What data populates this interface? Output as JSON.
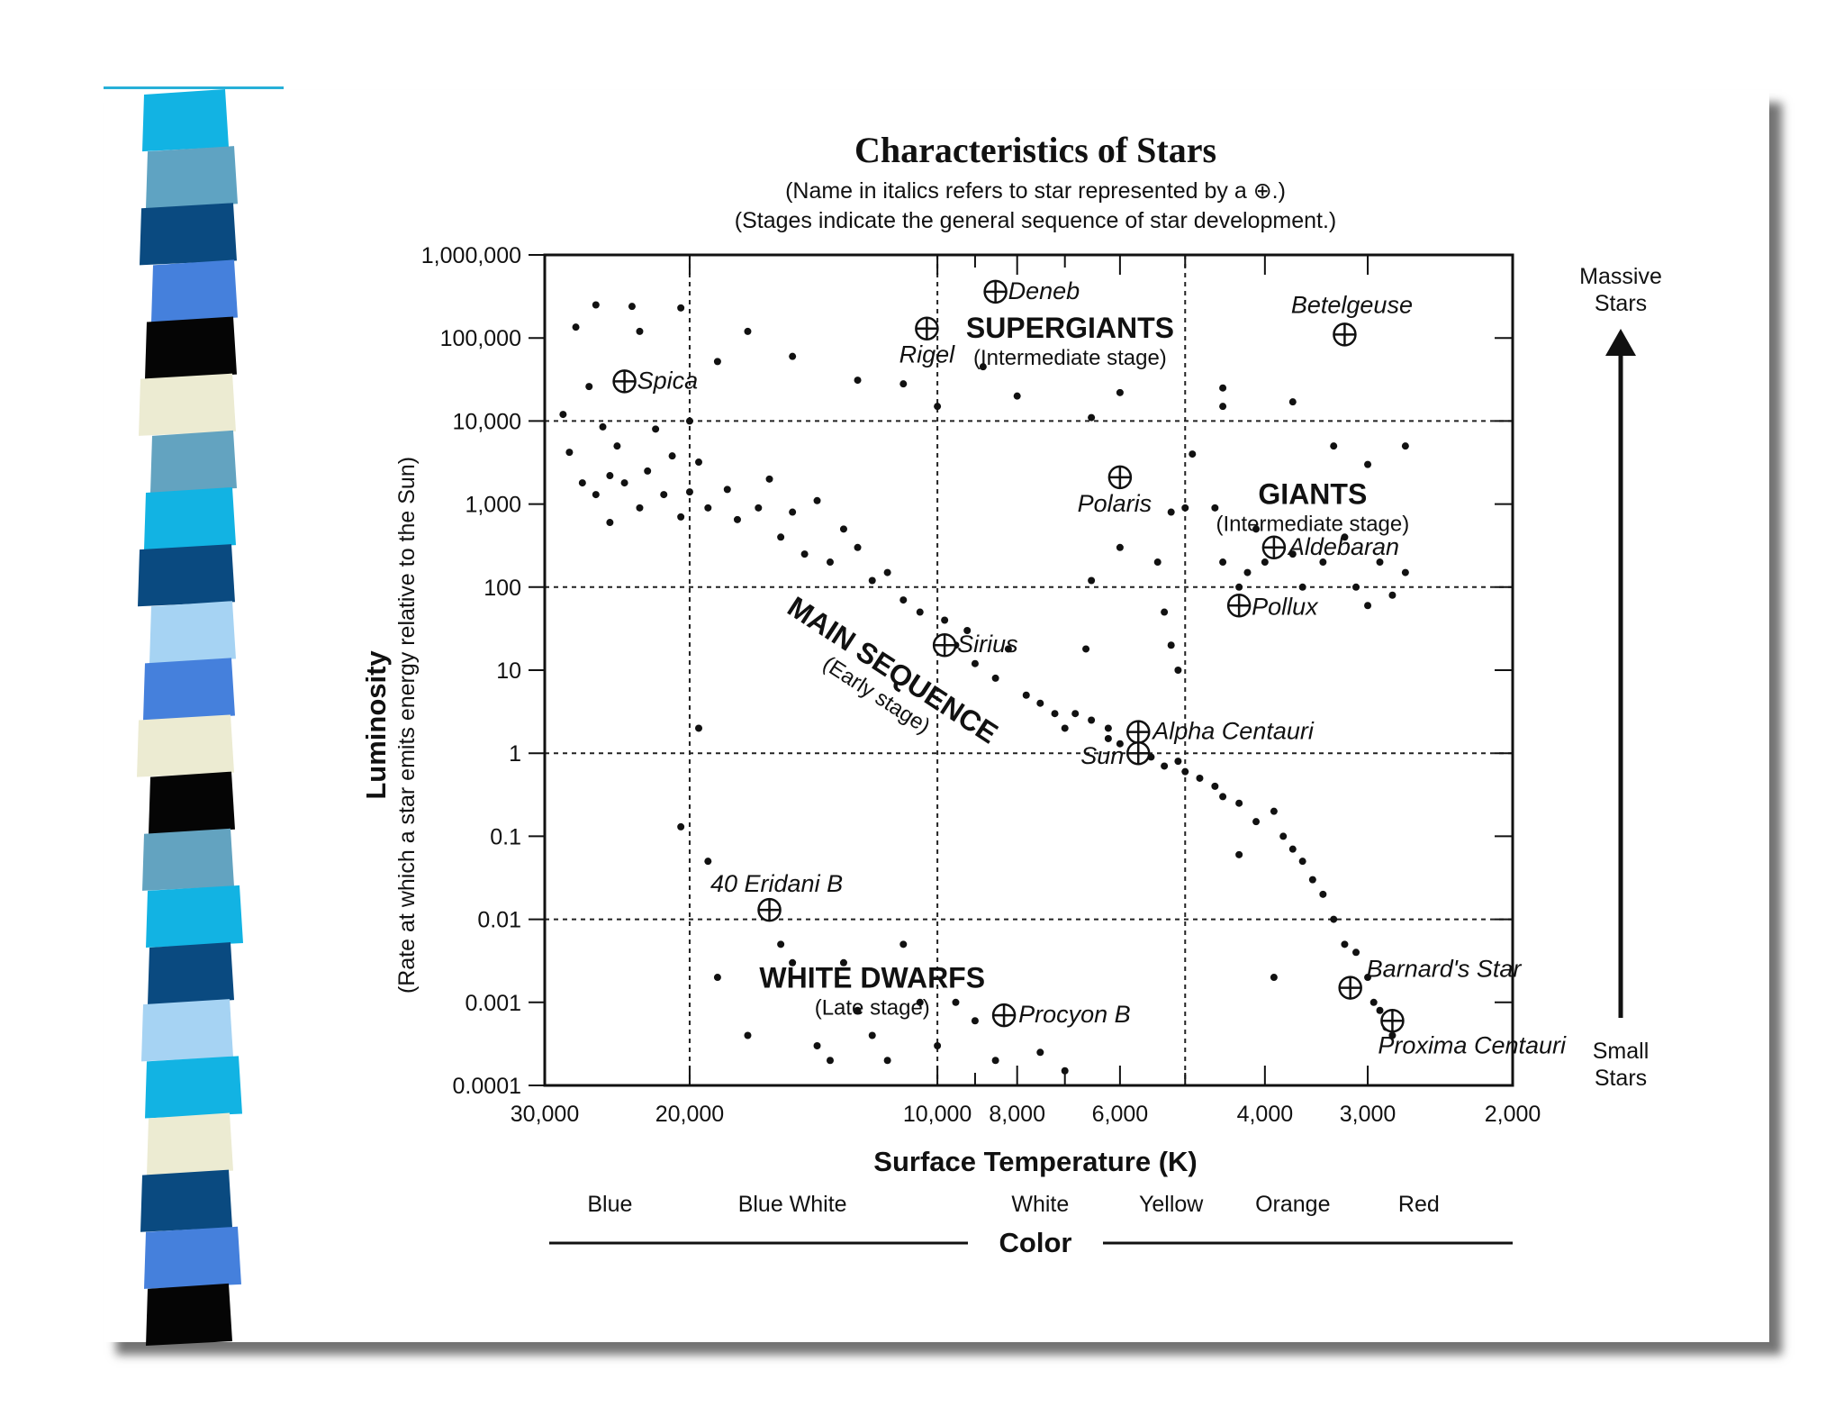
{
  "chart_data": {
    "type": "scatter",
    "title": "Characteristics of Stars",
    "subtitle_lines": [
      "(Name in italics refers to star represented by a ⊕.)",
      "(Stages indicate the general sequence of star development.)"
    ],
    "xlabel": "Surface Temperature (K)",
    "ylabel": "Luminosity",
    "ylabel_sub": "(Rate at which a star emits energy relative to the Sun)",
    "x_scale": "reversed-log",
    "y_scale": "log",
    "xlim": [
      30000,
      2000
    ],
    "ylim": [
      0.0001,
      1000000
    ],
    "x_ticks": [
      {
        "value": 30000,
        "label": "30,000"
      },
      {
        "value": 20000,
        "label": "20,000"
      },
      {
        "value": 10000,
        "label": "10,000"
      },
      {
        "value": 8000,
        "label": "8,000"
      },
      {
        "value": 6000,
        "label": "6,000"
      },
      {
        "value": 4000,
        "label": "4,000"
      },
      {
        "value": 3000,
        "label": "3,000"
      },
      {
        "value": 2000,
        "label": "2,000"
      }
    ],
    "y_ticks": [
      {
        "value": 1000000,
        "label": "1,000,000"
      },
      {
        "value": 100000,
        "label": "100,000"
      },
      {
        "value": 10000,
        "label": "10,000"
      },
      {
        "value": 1000,
        "label": "1,000"
      },
      {
        "value": 100,
        "label": "100"
      },
      {
        "value": 10,
        "label": "10"
      },
      {
        "value": 1,
        "label": "1"
      },
      {
        "value": 0.1,
        "label": "0.1"
      },
      {
        "value": 0.01,
        "label": "0.01"
      },
      {
        "value": 0.001,
        "label": "0.001"
      },
      {
        "value": 0.0001,
        "label": "0.0001"
      }
    ],
    "grid_x": [
      20000,
      10000,
      5000
    ],
    "grid_y": [
      10000,
      100,
      1,
      0.01
    ],
    "color_axis": {
      "title": "Color",
      "labels": [
        {
          "text": "Blue",
          "temp": 25000
        },
        {
          "text": "Blue White",
          "temp": 15000
        },
        {
          "text": "White",
          "temp": 7500
        },
        {
          "text": "Yellow",
          "temp": 5200
        },
        {
          "text": "Orange",
          "temp": 3700
        },
        {
          "text": "Red",
          "temp": 2600
        }
      ]
    },
    "right_axis": {
      "top_label": [
        "Massive",
        "Stars"
      ],
      "bottom_label": [
        "Small",
        "Stars"
      ]
    },
    "regions": [
      {
        "name": "SUPERGIANTS",
        "stage": "(Intermediate stage)",
        "temp": 6900,
        "lum": 100000
      },
      {
        "name": "GIANTS",
        "stage": "(Intermediate stage)",
        "temp": 3500,
        "lum": 1000
      },
      {
        "name": "MAIN SEQUENCE",
        "stage": "(Early stage)",
        "temp": 11500,
        "lum": 8
      },
      {
        "name": "WHITE DWARFS",
        "stage": "(Late stage)",
        "temp": 12000,
        "lum": 0.0015
      }
    ],
    "named_stars": [
      {
        "name": "Deneb",
        "temp": 8500,
        "lum": 360000
      },
      {
        "name": "Rigel",
        "temp": 10300,
        "lum": 130000
      },
      {
        "name": "Betelgeuse",
        "temp": 3200,
        "lum": 110000
      },
      {
        "name": "Spica",
        "temp": 24000,
        "lum": 30000
      },
      {
        "name": "Polaris",
        "temp": 6000,
        "lum": 2100
      },
      {
        "name": "Aldebaran",
        "temp": 3900,
        "lum": 300
      },
      {
        "name": "Pollux",
        "temp": 4300,
        "lum": 60
      },
      {
        "name": "Sirius",
        "temp": 9800,
        "lum": 20
      },
      {
        "name": "Alpha Centauri",
        "temp": 5700,
        "lum": 1.8
      },
      {
        "name": "Sun",
        "temp": 5700,
        "lum": 1
      },
      {
        "name": "40 Eridani B",
        "temp": 16000,
        "lum": 0.013
      },
      {
        "name": "Barnard's Star",
        "temp": 3150,
        "lum": 0.0015
      },
      {
        "name": "Procyon B",
        "temp": 8300,
        "lum": 0.0007
      },
      {
        "name": "Proxima Centauri",
        "temp": 2800,
        "lum": 0.0006
      }
    ],
    "points": [
      [
        28500,
        12000
      ],
      [
        28000,
        4200
      ],
      [
        27500,
        135000
      ],
      [
        27000,
        1800
      ],
      [
        26500,
        26000
      ],
      [
        26000,
        250000
      ],
      [
        26000,
        1300
      ],
      [
        25500,
        8500
      ],
      [
        25000,
        600
      ],
      [
        25000,
        2200
      ],
      [
        24500,
        5000
      ],
      [
        24000,
        1800
      ],
      [
        23500,
        240000
      ],
      [
        23000,
        120000
      ],
      [
        23000,
        900
      ],
      [
        22500,
        2500
      ],
      [
        22000,
        8000
      ],
      [
        21500,
        1300
      ],
      [
        21000,
        3800
      ],
      [
        20500,
        230000
      ],
      [
        20500,
        700
      ],
      [
        20000,
        10000
      ],
      [
        20000,
        1400
      ],
      [
        19500,
        3200
      ],
      [
        19000,
        900
      ],
      [
        18500,
        52000
      ],
      [
        18000,
        1500
      ],
      [
        17500,
        650
      ],
      [
        17000,
        120000
      ],
      [
        16500,
        900
      ],
      [
        16000,
        2000
      ],
      [
        15500,
        400
      ],
      [
        15000,
        60000
      ],
      [
        15000,
        800
      ],
      [
        14500,
        250
      ],
      [
        14000,
        1100
      ],
      [
        13500,
        200
      ],
      [
        13000,
        500
      ],
      [
        12500,
        31000
      ],
      [
        12500,
        300
      ],
      [
        12000,
        120
      ],
      [
        11500,
        150
      ],
      [
        11000,
        28000
      ],
      [
        11000,
        70
      ],
      [
        10500,
        50
      ],
      [
        10000,
        15000
      ],
      [
        9800,
        40
      ],
      [
        9500,
        20
      ],
      [
        9200,
        30
      ],
      [
        9000,
        12
      ],
      [
        8800,
        45000
      ],
      [
        8500,
        8
      ],
      [
        8200,
        18
      ],
      [
        8000,
        20000
      ],
      [
        7800,
        5
      ],
      [
        7500,
        4
      ],
      [
        7200,
        3
      ],
      [
        7000,
        2
      ],
      [
        6800,
        3
      ],
      [
        6500,
        11000
      ],
      [
        6500,
        2.5
      ],
      [
        6200,
        1.5
      ],
      [
        6000,
        22000
      ],
      [
        6000,
        1.3
      ],
      [
        5800,
        1
      ],
      [
        5500,
        0.9
      ],
      [
        5300,
        0.7
      ],
      [
        5100,
        0.8
      ],
      [
        5000,
        0.6
      ],
      [
        4800,
        0.5
      ],
      [
        4600,
        0.4
      ],
      [
        4500,
        0.3
      ],
      [
        4300,
        0.25
      ],
      [
        4100,
        0.15
      ],
      [
        3900,
        0.2
      ],
      [
        3800,
        0.1
      ],
      [
        3700,
        0.07
      ],
      [
        3600,
        0.05
      ],
      [
        3500,
        0.03
      ],
      [
        3400,
        0.02
      ],
      [
        3300,
        0.01
      ],
      [
        3200,
        0.005
      ],
      [
        3100,
        0.004
      ],
      [
        3000,
        0.002
      ],
      [
        2950,
        0.001
      ],
      [
        2900,
        0.0008
      ],
      [
        2850,
        0.0005
      ],
      [
        2800,
        0.0004
      ],
      [
        6500,
        120
      ],
      [
        6000,
        300
      ],
      [
        5400,
        200
      ],
      [
        5200,
        800
      ],
      [
        5000,
        900
      ],
      [
        4900,
        4000
      ],
      [
        4600,
        900
      ],
      [
        4500,
        200
      ],
      [
        4300,
        100
      ],
      [
        4200,
        150
      ],
      [
        4100,
        500
      ],
      [
        4000,
        200
      ],
      [
        3700,
        250
      ],
      [
        3600,
        100
      ],
      [
        3400,
        200
      ],
      [
        3200,
        400
      ],
      [
        3100,
        100
      ],
      [
        3000,
        60
      ],
      [
        2900,
        200
      ],
      [
        2800,
        80
      ],
      [
        2700,
        150
      ],
      [
        3300,
        5000
      ],
      [
        2700,
        5000
      ],
      [
        3000,
        3000
      ],
      [
        4500,
        25000
      ],
      [
        4500,
        15000
      ],
      [
        3700,
        17000
      ],
      [
        5300,
        50
      ],
      [
        5200,
        20
      ],
      [
        5100,
        10
      ],
      [
        6600,
        18
      ],
      [
        6200,
        2
      ],
      [
        13000,
        0.003
      ],
      [
        12500,
        0.0008
      ],
      [
        12000,
        0.0004
      ],
      [
        11500,
        0.0002
      ],
      [
        11000,
        0.005
      ],
      [
        10500,
        0.001
      ],
      [
        10000,
        0.0003
      ],
      [
        9500,
        0.001
      ],
      [
        9000,
        0.0006
      ],
      [
        8500,
        0.0002
      ],
      [
        7500,
        0.00025
      ],
      [
        7000,
        0.00015
      ],
      [
        15500,
        0.005
      ],
      [
        15000,
        0.003
      ],
      [
        14000,
        0.0003
      ],
      [
        13500,
        0.0002
      ],
      [
        17000,
        0.0004
      ],
      [
        18500,
        0.002
      ],
      [
        19500,
        2
      ],
      [
        20500,
        0.13
      ],
      [
        19000,
        0.05
      ],
      [
        3900,
        0.002
      ],
      [
        4300,
        0.06
      ]
    ]
  }
}
